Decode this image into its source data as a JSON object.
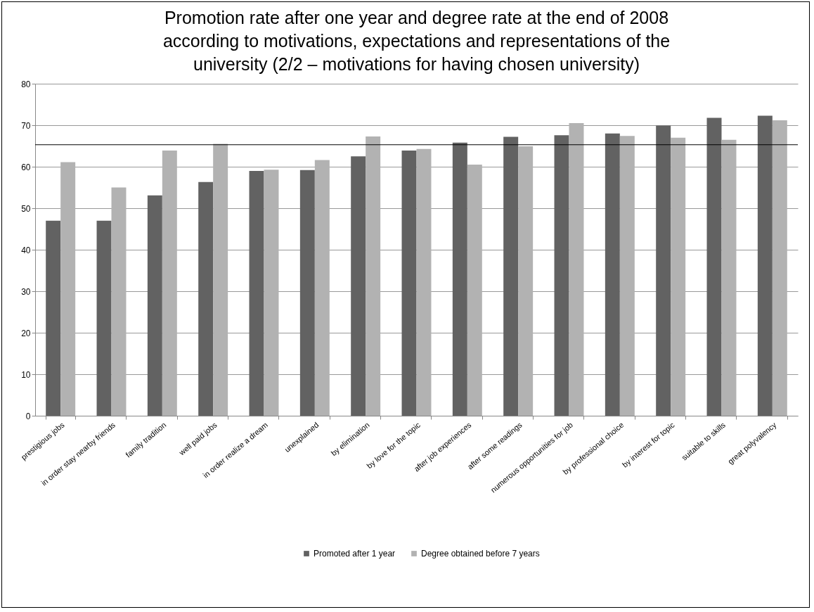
{
  "chart_data": {
    "type": "bar",
    "title": [
      "Promotion rate after one year and degree rate at the end of 2008",
      "according to  motivations, expectations and representations of the",
      "university  (2/2 – motivations for having chosen university)"
    ],
    "categories": [
      "prestigious jobs",
      "in order stay nearby friends",
      "family tradition",
      "well paid jobs",
      "in order realize a dream",
      "unexplained",
      "by elimination",
      "by love for the topic",
      "after job experiences",
      "after some readings",
      "numerous opportunities for job",
      "by professional choice",
      "by interest for topic",
      "suitable to skills",
      "great polyvalency"
    ],
    "series": [
      {
        "name": "Promoted after 1 year",
        "color": "#626262",
        "values": [
          47,
          47,
          53.1,
          56.3,
          59,
          59.2,
          62.5,
          63.9,
          65.8,
          67.2,
          67.6,
          68,
          69.9,
          71.8,
          72.3
        ]
      },
      {
        "name": "Degree obtained before 7 years",
        "color": "#b2b2b2",
        "values": [
          61.1,
          55,
          63.9,
          65.5,
          59.3,
          61.6,
          67.3,
          64.3,
          60.5,
          64.9,
          70.5,
          67.4,
          67,
          66.5,
          71.2
        ]
      }
    ],
    "ylim": [
      0,
      80
    ],
    "yticks": [
      0,
      10,
      20,
      30,
      40,
      50,
      60,
      70,
      80
    ],
    "grid": "y",
    "legend": "bottom",
    "ref_lines": [
      {
        "axis": "y",
        "value": 65.3,
        "color": "#000000"
      }
    ]
  }
}
